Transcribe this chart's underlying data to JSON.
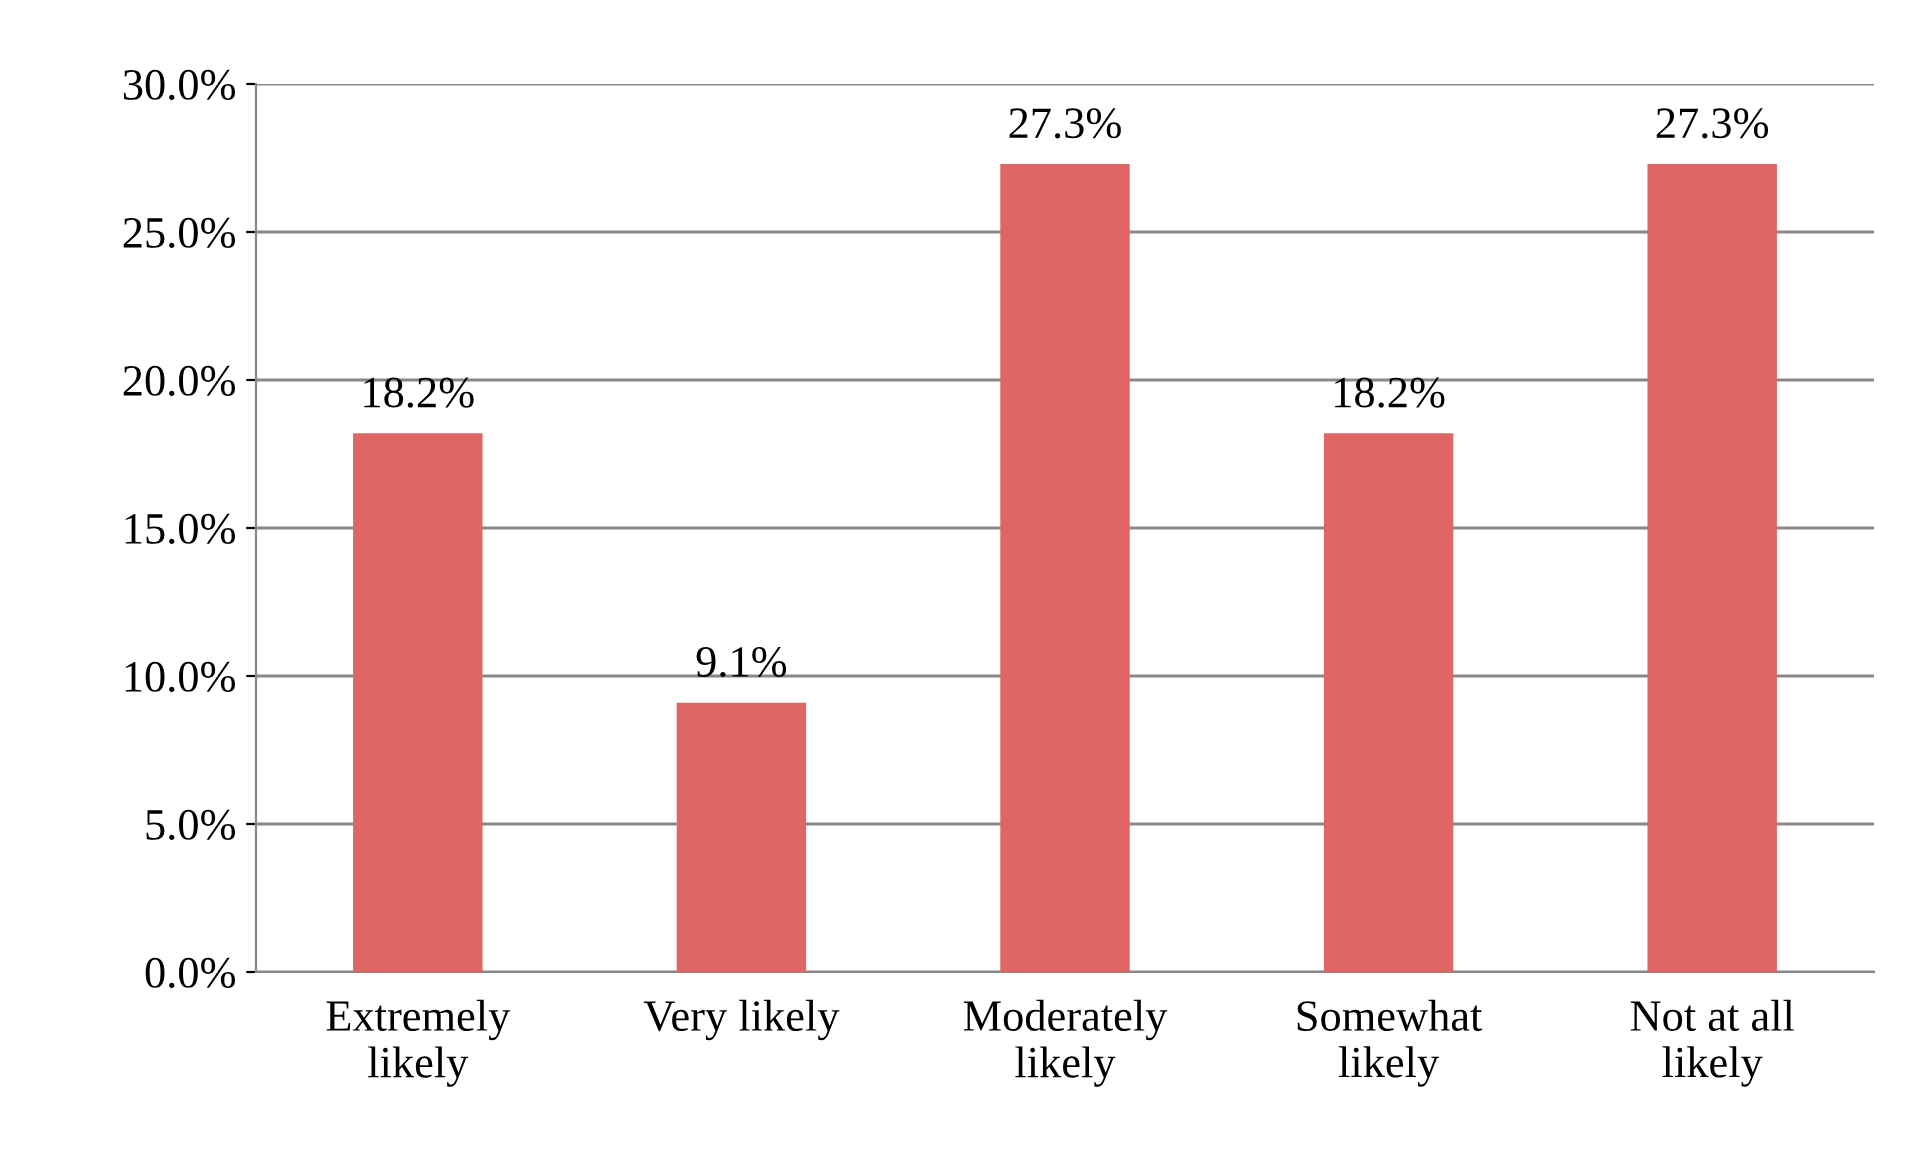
{
  "chart_data": {
    "type": "bar",
    "categories": [
      "Extremely\nlikely",
      "Very likely",
      "Moderately\nlikely",
      "Somewhat\nlikely",
      "Not at all\nlikely"
    ],
    "values": [
      18.2,
      9.1,
      27.3,
      18.2,
      27.3
    ],
    "color": "#e06666",
    "ylim": [
      0,
      30
    ],
    "yticks": [
      {
        "value": 0,
        "label": "0.0%"
      },
      {
        "value": 5,
        "label": "5.0%"
      },
      {
        "value": 10,
        "label": "10.0%"
      },
      {
        "value": 15,
        "label": "15.0%"
      },
      {
        "value": 20,
        "label": "20.0%"
      },
      {
        "value": 25,
        "label": "25.0%"
      },
      {
        "value": 30,
        "label": "30.0%"
      }
    ],
    "value_labels": [
      "18.2%",
      "9.1%",
      "27.3%",
      "18.2%",
      "27.3%"
    ],
    "grid": "y"
  }
}
